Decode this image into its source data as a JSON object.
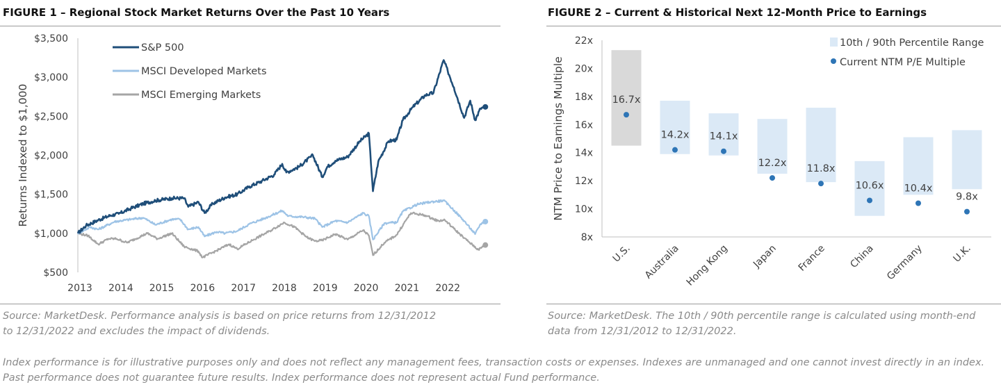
{
  "fig1": {
    "title": "FIGURE 1 – Regional Stock Market Returns Over the Past 10 Years",
    "source": "Source: MarketDesk. Performance analysis is based on price returns from 12/31/2012 to 12/31/2022 and excludes the impact of dividends."
  },
  "fig2": {
    "title": "FIGURE 2 – Current & Historical Next 12-Month Price to Earnings",
    "source": "Source: MarketDesk. The 10th / 90th percentile range is calculated using month-end data from 12/31/2012 to 12/31/2022."
  },
  "disclaimer": "Index performance is for illustrative purposes only and does not reflect any management fees, transaction costs or expenses. Indexes are unmanaged and one cannot invest directly in an index. Past performance does not guarantee future results. Index performance does not represent actual Fund performance.",
  "chart_data": [
    {
      "type": "line",
      "title": "",
      "ylabel": "Returns Indexed to $1,000",
      "xlabel": "",
      "xlim": [
        2013,
        2023
      ],
      "ylim": [
        500,
        3500
      ],
      "x_ticks": [
        "2013",
        "2014",
        "2015",
        "2016",
        "2017",
        "2018",
        "2019",
        "2020",
        "2021",
        "2022"
      ],
      "y_ticks": [
        "$500",
        "$1,000",
        "$1,500",
        "$2,000",
        "$2,500",
        "$3,000",
        "$3,500"
      ],
      "grid": false,
      "legend": "top-left",
      "series": [
        {
          "name": "S&P 500",
          "color": "#1f4e79",
          "points": [
            [
              2013.0,
              1000
            ],
            [
              2013.2,
              1100
            ],
            [
              2013.5,
              1170
            ],
            [
              2013.8,
              1230
            ],
            [
              2014.0,
              1250
            ],
            [
              2014.3,
              1320
            ],
            [
              2014.6,
              1380
            ],
            [
              2014.9,
              1420
            ],
            [
              2015.3,
              1450
            ],
            [
              2015.6,
              1450
            ],
            [
              2015.7,
              1340
            ],
            [
              2015.95,
              1400
            ],
            [
              2016.1,
              1260
            ],
            [
              2016.3,
              1380
            ],
            [
              2016.6,
              1460
            ],
            [
              2016.9,
              1500
            ],
            [
              2017.2,
              1600
            ],
            [
              2017.5,
              1670
            ],
            [
              2017.8,
              1750
            ],
            [
              2018.0,
              1890
            ],
            [
              2018.1,
              1780
            ],
            [
              2018.4,
              1850
            ],
            [
              2018.75,
              2000
            ],
            [
              2018.98,
              1720
            ],
            [
              2019.1,
              1850
            ],
            [
              2019.3,
              1930
            ],
            [
              2019.6,
              1980
            ],
            [
              2019.9,
              2180
            ],
            [
              2020.12,
              2280
            ],
            [
              2020.22,
              1540
            ],
            [
              2020.35,
              1920
            ],
            [
              2020.6,
              2180
            ],
            [
              2020.8,
              2200
            ],
            [
              2020.95,
              2450
            ],
            [
              2021.2,
              2620
            ],
            [
              2021.5,
              2770
            ],
            [
              2021.7,
              2800
            ],
            [
              2021.95,
              3220
            ],
            [
              2022.05,
              3080
            ],
            [
              2022.2,
              2870
            ],
            [
              2022.45,
              2480
            ],
            [
              2022.6,
              2700
            ],
            [
              2022.72,
              2450
            ],
            [
              2022.85,
              2600
            ],
            [
              2022.97,
              2620
            ]
          ]
        },
        {
          "name": "MSCI Developed Markets",
          "color": "#9dc3e6",
          "points": [
            [
              2013.0,
              1000
            ],
            [
              2013.3,
              1080
            ],
            [
              2013.5,
              1050
            ],
            [
              2013.9,
              1150
            ],
            [
              2014.3,
              1180
            ],
            [
              2014.6,
              1200
            ],
            [
              2014.9,
              1110
            ],
            [
              2015.3,
              1180
            ],
            [
              2015.5,
              1180
            ],
            [
              2015.7,
              1050
            ],
            [
              2015.95,
              1080
            ],
            [
              2016.1,
              960
            ],
            [
              2016.4,
              1020
            ],
            [
              2016.6,
              1000
            ],
            [
              2016.9,
              1030
            ],
            [
              2017.2,
              1120
            ],
            [
              2017.6,
              1200
            ],
            [
              2018.0,
              1290
            ],
            [
              2018.15,
              1220
            ],
            [
              2018.5,
              1210
            ],
            [
              2018.8,
              1190
            ],
            [
              2018.98,
              1080
            ],
            [
              2019.3,
              1160
            ],
            [
              2019.6,
              1140
            ],
            [
              2019.98,
              1260
            ],
            [
              2020.12,
              1220
            ],
            [
              2020.22,
              920
            ],
            [
              2020.5,
              1130
            ],
            [
              2020.8,
              1140
            ],
            [
              2020.95,
              1280
            ],
            [
              2021.3,
              1370
            ],
            [
              2021.6,
              1400
            ],
            [
              2021.95,
              1420
            ],
            [
              2022.1,
              1350
            ],
            [
              2022.45,
              1160
            ],
            [
              2022.72,
              990
            ],
            [
              2022.85,
              1120
            ],
            [
              2022.97,
              1150
            ]
          ]
        },
        {
          "name": "MSCI Emerging Markets",
          "color": "#a5a5a5",
          "points": [
            [
              2013.0,
              1000
            ],
            [
              2013.25,
              970
            ],
            [
              2013.5,
              860
            ],
            [
              2013.75,
              930
            ],
            [
              2013.95,
              930
            ],
            [
              2014.2,
              880
            ],
            [
              2014.7,
              1000
            ],
            [
              2014.95,
              930
            ],
            [
              2015.3,
              1000
            ],
            [
              2015.6,
              830
            ],
            [
              2015.95,
              770
            ],
            [
              2016.05,
              690
            ],
            [
              2016.4,
              780
            ],
            [
              2016.7,
              860
            ],
            [
              2016.9,
              800
            ],
            [
              2017.3,
              920
            ],
            [
              2017.7,
              1030
            ],
            [
              2018.05,
              1140
            ],
            [
              2018.3,
              1080
            ],
            [
              2018.6,
              950
            ],
            [
              2018.8,
              900
            ],
            [
              2018.98,
              910
            ],
            [
              2019.3,
              990
            ],
            [
              2019.6,
              920
            ],
            [
              2019.98,
              1040
            ],
            [
              2020.12,
              970
            ],
            [
              2020.22,
              720
            ],
            [
              2020.5,
              880
            ],
            [
              2020.8,
              980
            ],
            [
              2020.98,
              1130
            ],
            [
              2021.15,
              1260
            ],
            [
              2021.5,
              1230
            ],
            [
              2021.8,
              1160
            ],
            [
              2021.98,
              1170
            ],
            [
              2022.2,
              1060
            ],
            [
              2022.45,
              940
            ],
            [
              2022.8,
              790
            ],
            [
              2022.97,
              850
            ]
          ]
        }
      ]
    },
    {
      "type": "bar",
      "title": "",
      "ylabel": "NTM Price to Earnings Multiple",
      "xlabel": "",
      "ylim": [
        8,
        22
      ],
      "y_ticks": [
        "8x",
        "10x",
        "12x",
        "14x",
        "16x",
        "18x",
        "20x",
        "22x"
      ],
      "categories": [
        "U.S.",
        "Australia",
        "Hong Kong",
        "Japan",
        "France",
        "China",
        "Germany",
        "U.K."
      ],
      "grid": false,
      "legend": "top-right",
      "series": [
        {
          "name": "10th / 90th Percentile Range",
          "color": "#dbe9f6",
          "highlight_color": "#d9d9d9",
          "low": [
            14.5,
            13.9,
            13.8,
            12.5,
            11.9,
            9.5,
            11.0,
            11.4
          ],
          "high": [
            21.3,
            17.7,
            16.8,
            16.4,
            17.2,
            13.4,
            15.1,
            15.6
          ]
        },
        {
          "name": "Current NTM P/E Multiple",
          "color": "#2e75b6",
          "values": [
            16.7,
            14.2,
            14.1,
            12.2,
            11.8,
            10.6,
            10.4,
            9.8
          ],
          "labels": [
            "16.7x",
            "14.2x",
            "14.1x",
            "12.2x",
            "11.8x",
            "10.6x",
            "10.4x",
            "9.8x"
          ]
        }
      ]
    }
  ]
}
